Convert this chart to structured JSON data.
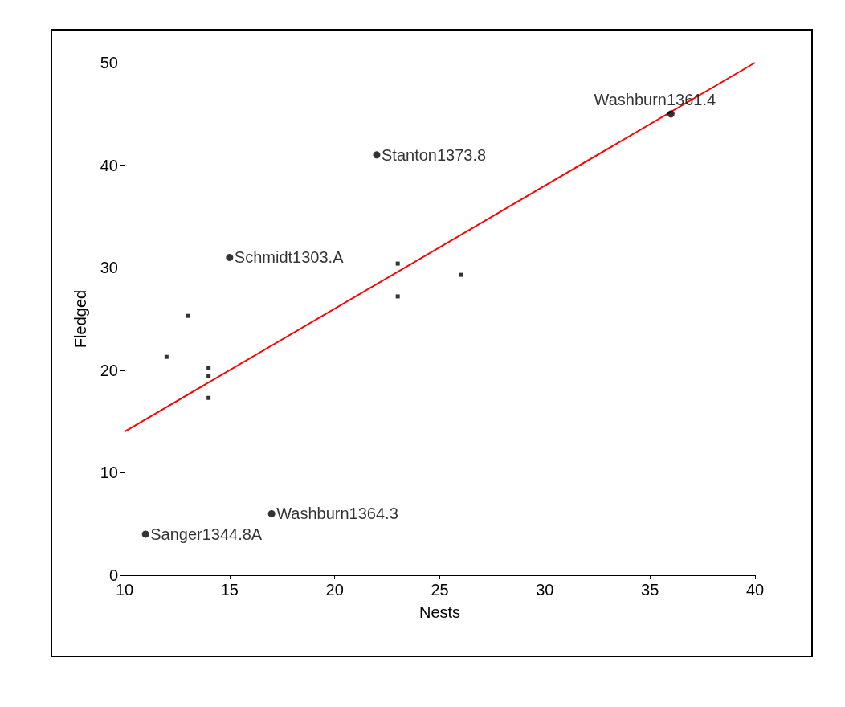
{
  "chart_data": {
    "type": "scatter",
    "xlabel": "Nests",
    "ylabel": "Fledged",
    "xlim": [
      10,
      40
    ],
    "xticks": [
      10,
      15,
      20,
      25,
      30,
      35,
      40
    ],
    "ylim": [
      0,
      50
    ],
    "yticks": [
      0,
      10,
      20,
      30,
      40,
      50
    ],
    "grid": false,
    "series": [
      {
        "marker": "circle",
        "color": "#000000",
        "x": [
          11,
          17,
          15,
          22,
          36
        ],
        "values": [
          4,
          6,
          31,
          41,
          45
        ]
      },
      {
        "marker": "square",
        "color": "#000000",
        "x": [
          12,
          13,
          14,
          14,
          14,
          23,
          23,
          26
        ],
        "values": [
          21.3,
          25.3,
          20.2,
          19.4,
          17.3,
          30.4,
          27.2,
          29.3
        ]
      },
      {
        "type": "line",
        "marker": "none",
        "color": "#ff0000",
        "x": [
          10,
          40
        ],
        "values": [
          14,
          50
        ]
      }
    ],
    "annotations": [
      {
        "text": "Sanger1344.8A",
        "x": 11,
        "y": 4
      },
      {
        "text": "Washburn1364.3",
        "x": 17,
        "y": 6
      },
      {
        "text": "Schmidt1303.A",
        "x": 15,
        "y": 31
      },
      {
        "text": "Stanton1373.8",
        "x": 22,
        "y": 41
      },
      {
        "text": "Washburn1361.4",
        "x": 36,
        "y": 45
      }
    ]
  }
}
